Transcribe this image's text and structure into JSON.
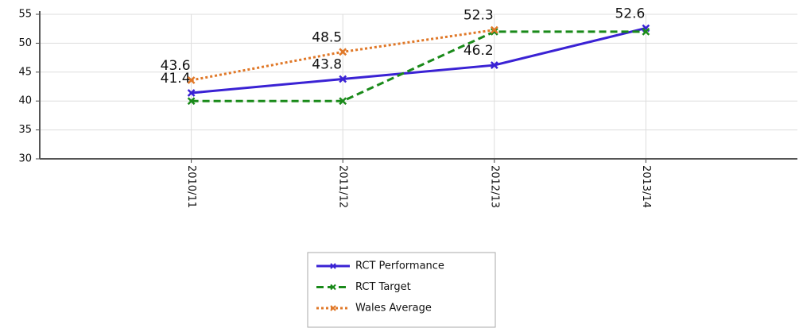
{
  "chart_data": {
    "type": "line",
    "categories": [
      "2010/11",
      "2011/12",
      "2012/13",
      "2013/14"
    ],
    "series": [
      {
        "name": "RCT Performance",
        "color": "#3a22d4",
        "dash": "solid",
        "data_labels": true,
        "values": [
          41.4,
          43.8,
          46.2,
          52.6
        ]
      },
      {
        "name": "RCT Target",
        "color": "#1a8a1a",
        "dash": "dashed",
        "data_labels": false,
        "values": [
          40,
          40,
          52,
          52
        ]
      },
      {
        "name": "Wales Average",
        "color": "#e07828",
        "dash": "dotted",
        "data_labels": true,
        "values": [
          43.6,
          48.5,
          52.3,
          null
        ]
      }
    ],
    "ylim": [
      30,
      55
    ],
    "yticks": [
      30,
      35,
      40,
      45,
      50,
      55
    ],
    "grid": true,
    "legend": "bottom"
  }
}
